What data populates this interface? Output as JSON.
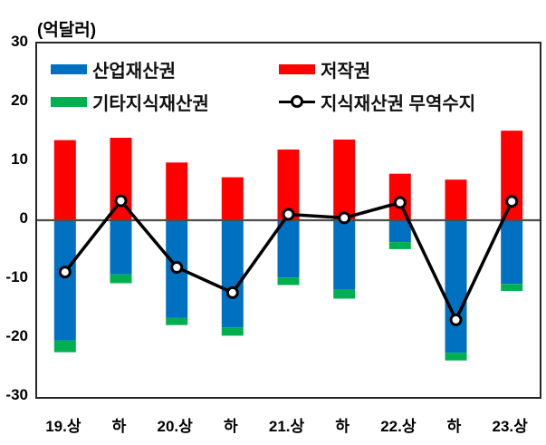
{
  "unit_label": "(억달러)",
  "legend": {
    "items": [
      {
        "label": "산업재산권",
        "type": "bar",
        "color": "#0070C0"
      },
      {
        "label": "기타지식재산권",
        "type": "bar",
        "color": "#00B050"
      },
      {
        "label": "저작권",
        "type": "bar",
        "color": "#FF0000"
      },
      {
        "label": "지식재산권 무역수지",
        "type": "line",
        "color": "#000000"
      }
    ]
  },
  "chart_data": {
    "type": "bar",
    "subtype": "stacked-bar-with-line",
    "title": "",
    "xlabel": "",
    "ylabel": "(억달러)",
    "categories": [
      "19.상",
      "하",
      "20.상",
      "하",
      "21.상",
      "하",
      "22.상",
      "하",
      "23.상"
    ],
    "bar_series": [
      {
        "name": "산업재산권",
        "color": "#0070C0",
        "values": [
          -20.4,
          -9.2,
          -16.6,
          -18.2,
          -9.7,
          -11.8,
          -3.7,
          -22.5,
          -10.8
        ]
      },
      {
        "name": "기타지식재산권",
        "color": "#00B050",
        "values": [
          -2.0,
          -1.5,
          -1.2,
          -1.4,
          -1.3,
          -1.5,
          -1.2,
          -1.3,
          -1.2
        ]
      },
      {
        "name": "저작권",
        "color": "#FF0000",
        "values": [
          13.6,
          14.0,
          9.8,
          7.3,
          12.0,
          13.7,
          7.9,
          6.9,
          15.2
        ]
      }
    ],
    "line_series": {
      "name": "지식재산권 무역수지",
      "color": "#000000",
      "marker": "open-circle-white",
      "values": [
        -8.8,
        3.3,
        -8.0,
        -12.3,
        1.0,
        0.4,
        3.0,
        -16.9,
        3.2
      ]
    },
    "ylim": [
      -30,
      30
    ],
    "yticks": [
      30,
      20,
      10,
      0,
      -10,
      -20,
      -30
    ],
    "grid": "zero-line-only",
    "zero_line_color": "#4d4d4d",
    "legend_position": "top-inside-two-columns"
  }
}
